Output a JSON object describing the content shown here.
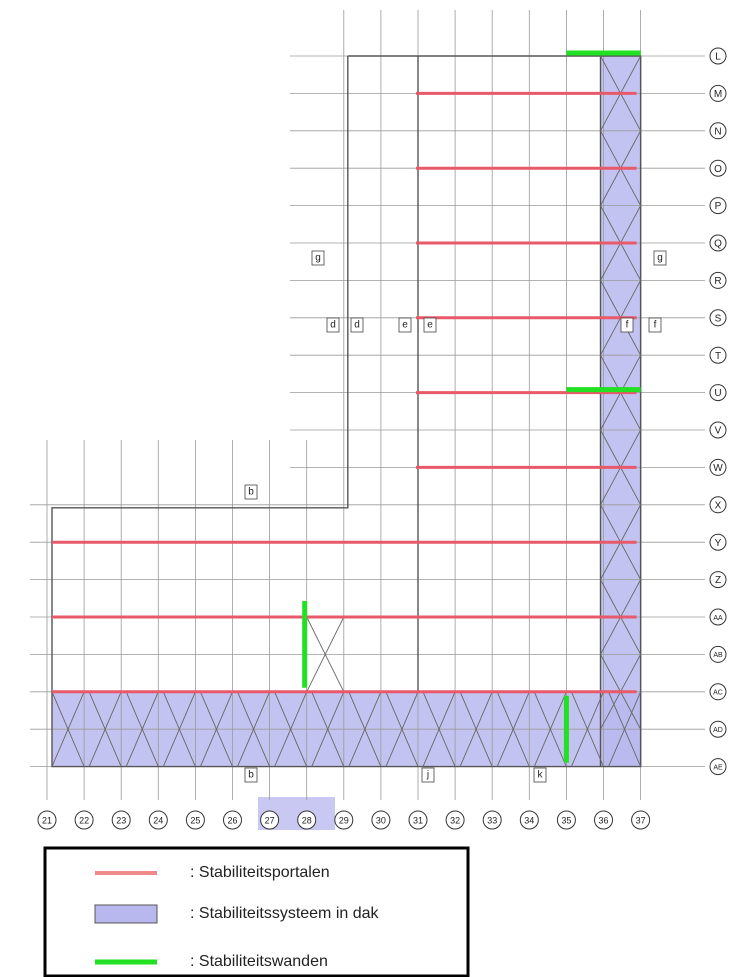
{
  "columns": [
    "21",
    "22",
    "23",
    "24",
    "25",
    "26",
    "27",
    "28",
    "29",
    "30",
    "31",
    "32",
    "33",
    "34",
    "35",
    "36",
    "37"
  ],
  "rows": [
    "L",
    "M",
    "N",
    "O",
    "P",
    "Q",
    "R",
    "S",
    "T",
    "U",
    "V",
    "W",
    "X",
    "Y",
    "Z",
    "AA",
    "AB",
    "AC",
    "AD",
    "AE"
  ],
  "section_marks": [
    "g",
    "g",
    "d",
    "d",
    "e",
    "e",
    "f",
    "f",
    "b",
    "b",
    "j",
    "k"
  ],
  "legend": [
    {
      "label": ": Stabiliteitsportalen"
    },
    {
      "label": ": Stabiliteitssysteem in dak"
    },
    {
      "label": ": Stabiliteitswanden"
    }
  ]
}
